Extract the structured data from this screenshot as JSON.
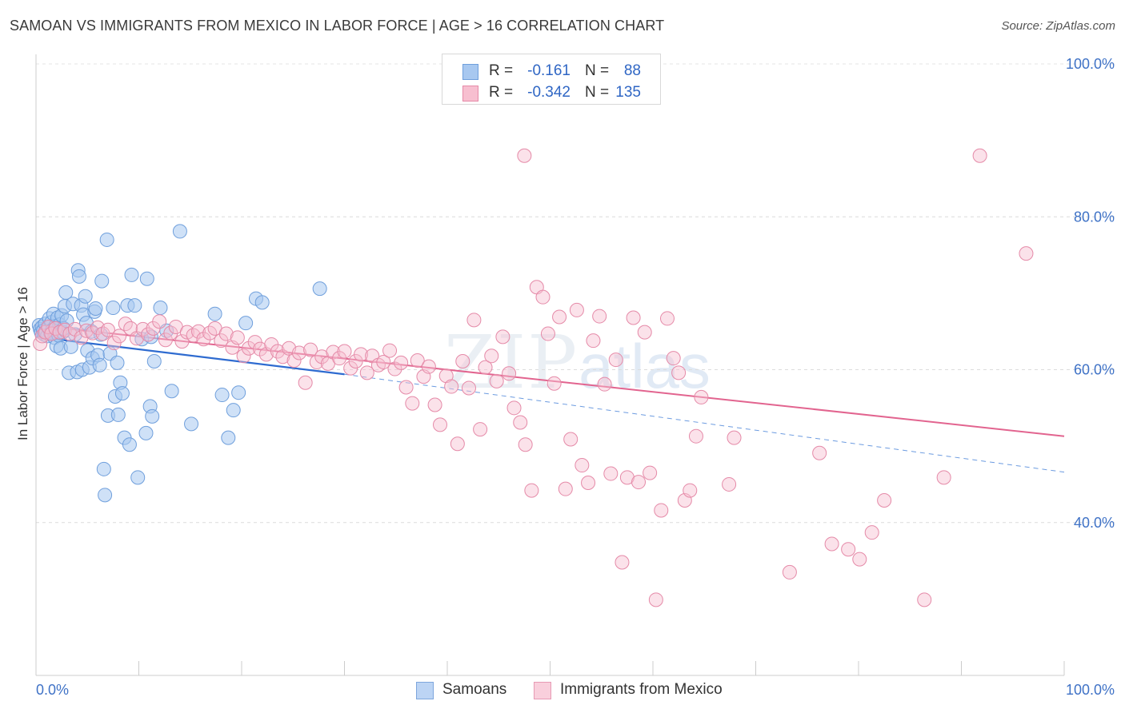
{
  "title": "SAMOAN VS IMMIGRANTS FROM MEXICO IN LABOR FORCE | AGE > 16 CORRELATION CHART",
  "source": "Source: ZipAtlas.com",
  "watermark": {
    "zip": "ZIP",
    "atlas": "atlas"
  },
  "legend": {
    "rows": [
      {
        "r_label": "R =",
        "r_value": "-0.161",
        "n_label": "N =",
        "n_value": "88",
        "color": "#a8c8f0",
        "border": "#6f9fdc"
      },
      {
        "r_label": "R =",
        "r_value": "-0.342",
        "n_label": "N =",
        "n_value": "135",
        "color": "#f7bfd0",
        "border": "#e58aa8"
      }
    ]
  },
  "bottom_legend": [
    {
      "label": "Samoans",
      "color": "#bcd4f4",
      "border": "#7ea6dd"
    },
    {
      "label": "Immigrants from Mexico",
      "color": "#f9cfdc",
      "border": "#e79ab4"
    }
  ],
  "chart_data": {
    "type": "scatter",
    "title": "SAMOAN VS IMMIGRANTS FROM MEXICO IN LABOR FORCE | AGE > 16 CORRELATION CHART",
    "xlabel": "",
    "ylabel": "In Labor Force | Age > 16",
    "xlim": [
      0,
      100
    ],
    "ylim": [
      20,
      100
    ],
    "x_tick_labels": [
      "0.0%",
      "100.0%"
    ],
    "y_tick_labels": [
      "40.0%",
      "60.0%",
      "80.0%",
      "100.0%"
    ],
    "y_ticks": [
      40,
      60,
      80,
      100
    ],
    "grid": true,
    "legend_position": "top-center",
    "series": [
      {
        "name": "Samoans",
        "color": "#a8c8f0",
        "stroke": "#6f9fdc",
        "R": -0.161,
        "N": 88,
        "trend": {
          "x": [
            0,
            30
          ],
          "y": [
            64.3,
            59.4
          ]
        },
        "trend_dashed": {
          "x": [
            30,
            100
          ],
          "y": [
            59.4,
            46.6
          ]
        },
        "points": [
          [
            0.3,
            65.8
          ],
          [
            0.4,
            65.3
          ],
          [
            0.5,
            64.9
          ],
          [
            0.6,
            65.6
          ],
          [
            0.7,
            65.1
          ],
          [
            0.8,
            64.6
          ],
          [
            0.9,
            66.0
          ],
          [
            1.0,
            65.0
          ],
          [
            1.1,
            64.4
          ],
          [
            1.2,
            65.5
          ],
          [
            1.3,
            66.7
          ],
          [
            1.4,
            64.8
          ],
          [
            1.5,
            66.2
          ],
          [
            1.6,
            65.2
          ],
          [
            1.7,
            67.3
          ],
          [
            1.8,
            64.2
          ],
          [
            1.9,
            65.7
          ],
          [
            2.0,
            63.1
          ],
          [
            2.1,
            66.8
          ],
          [
            2.2,
            64.5
          ],
          [
            2.3,
            65.9
          ],
          [
            2.4,
            62.8
          ],
          [
            2.5,
            67.1
          ],
          [
            2.6,
            64.9
          ],
          [
            2.7,
            65.4
          ],
          [
            2.8,
            68.3
          ],
          [
            2.9,
            70.1
          ],
          [
            3.0,
            66.4
          ],
          [
            3.2,
            59.6
          ],
          [
            3.4,
            63.0
          ],
          [
            3.6,
            68.6
          ],
          [
            3.8,
            64.6
          ],
          [
            4.0,
            59.7
          ],
          [
            4.1,
            73.0
          ],
          [
            4.2,
            72.2
          ],
          [
            4.4,
            68.4
          ],
          [
            4.5,
            60.0
          ],
          [
            4.6,
            67.2
          ],
          [
            4.8,
            69.6
          ],
          [
            4.9,
            66.1
          ],
          [
            5.0,
            62.5
          ],
          [
            5.2,
            60.3
          ],
          [
            5.4,
            65.0
          ],
          [
            5.5,
            61.5
          ],
          [
            5.7,
            67.6
          ],
          [
            5.8,
            68.0
          ],
          [
            6.0,
            61.9
          ],
          [
            6.2,
            60.6
          ],
          [
            6.3,
            64.6
          ],
          [
            6.4,
            71.6
          ],
          [
            6.6,
            47.0
          ],
          [
            6.7,
            43.6
          ],
          [
            6.9,
            77.0
          ],
          [
            7.0,
            54.0
          ],
          [
            7.2,
            62.1
          ],
          [
            7.5,
            68.1
          ],
          [
            7.7,
            56.5
          ],
          [
            7.9,
            60.9
          ],
          [
            8.0,
            54.1
          ],
          [
            8.2,
            58.3
          ],
          [
            8.4,
            56.9
          ],
          [
            8.6,
            51.1
          ],
          [
            8.9,
            68.4
          ],
          [
            9.1,
            50.2
          ],
          [
            9.3,
            72.4
          ],
          [
            9.6,
            68.4
          ],
          [
            9.9,
            45.9
          ],
          [
            10.3,
            64.0
          ],
          [
            10.7,
            51.7
          ],
          [
            10.8,
            71.9
          ],
          [
            11.1,
            55.2
          ],
          [
            11.2,
            64.3
          ],
          [
            11.3,
            53.9
          ],
          [
            11.5,
            61.1
          ],
          [
            12.1,
            68.1
          ],
          [
            12.7,
            65.1
          ],
          [
            13.2,
            57.2
          ],
          [
            14.0,
            78.1
          ],
          [
            15.1,
            52.9
          ],
          [
            17.4,
            67.3
          ],
          [
            18.1,
            56.7
          ],
          [
            18.7,
            51.1
          ],
          [
            19.2,
            54.7
          ],
          [
            19.7,
            57.0
          ],
          [
            20.4,
            66.1
          ],
          [
            21.4,
            69.3
          ],
          [
            22.0,
            68.8
          ],
          [
            27.6,
            70.6
          ]
        ]
      },
      {
        "name": "Immigrants from Mexico",
        "color": "#f7bfd0",
        "stroke": "#e58aa8",
        "R": -0.342,
        "N": 135,
        "trend": {
          "x": [
            0,
            100
          ],
          "y": [
            65.8,
            51.3
          ]
        },
        "points": [
          [
            0.4,
            63.4
          ],
          [
            0.6,
            64.4
          ],
          [
            0.9,
            64.9
          ],
          [
            1.2,
            65.6
          ],
          [
            1.5,
            64.7
          ],
          [
            1.9,
            65.4
          ],
          [
            2.3,
            64.9
          ],
          [
            2.8,
            65.2
          ],
          [
            3.3,
            64.7
          ],
          [
            3.8,
            65.3
          ],
          [
            4.4,
            64.2
          ],
          [
            4.9,
            65.1
          ],
          [
            5.5,
            64.8
          ],
          [
            6.0,
            65.5
          ],
          [
            6.5,
            64.7
          ],
          [
            7.0,
            65.2
          ],
          [
            7.6,
            63.5
          ],
          [
            8.1,
            64.4
          ],
          [
            8.7,
            66.0
          ],
          [
            9.2,
            65.4
          ],
          [
            9.8,
            64.1
          ],
          [
            10.4,
            65.3
          ],
          [
            10.9,
            64.6
          ],
          [
            11.4,
            65.4
          ],
          [
            12.0,
            66.3
          ],
          [
            12.6,
            63.9
          ],
          [
            13.1,
            64.8
          ],
          [
            13.6,
            65.6
          ],
          [
            14.2,
            63.7
          ],
          [
            14.7,
            64.9
          ],
          [
            15.3,
            64.5
          ],
          [
            15.8,
            65.0
          ],
          [
            16.3,
            64.0
          ],
          [
            16.9,
            64.8
          ],
          [
            17.4,
            65.4
          ],
          [
            18.0,
            63.8
          ],
          [
            18.5,
            64.7
          ],
          [
            19.1,
            62.9
          ],
          [
            19.6,
            64.2
          ],
          [
            20.2,
            61.8
          ],
          [
            20.7,
            62.8
          ],
          [
            21.3,
            63.6
          ],
          [
            21.8,
            62.7
          ],
          [
            22.4,
            62.0
          ],
          [
            22.9,
            63.3
          ],
          [
            23.5,
            62.4
          ],
          [
            24.0,
            61.7
          ],
          [
            24.6,
            62.8
          ],
          [
            25.1,
            61.2
          ],
          [
            25.6,
            62.2
          ],
          [
            26.2,
            58.3
          ],
          [
            26.7,
            62.6
          ],
          [
            27.3,
            61.0
          ],
          [
            27.8,
            61.7
          ],
          [
            28.4,
            60.8
          ],
          [
            28.9,
            62.3
          ],
          [
            29.5,
            61.5
          ],
          [
            30.0,
            62.4
          ],
          [
            30.6,
            60.2
          ],
          [
            31.1,
            61.1
          ],
          [
            31.6,
            62.0
          ],
          [
            32.2,
            59.6
          ],
          [
            32.7,
            61.8
          ],
          [
            33.3,
            60.6
          ],
          [
            33.8,
            61.0
          ],
          [
            34.4,
            62.5
          ],
          [
            34.9,
            60.1
          ],
          [
            35.5,
            60.9
          ],
          [
            36.0,
            57.7
          ],
          [
            36.6,
            55.6
          ],
          [
            37.1,
            61.2
          ],
          [
            37.7,
            59.1
          ],
          [
            38.2,
            60.4
          ],
          [
            38.8,
            55.4
          ],
          [
            39.3,
            52.8
          ],
          [
            39.9,
            59.2
          ],
          [
            40.4,
            57.8
          ],
          [
            41.0,
            50.3
          ],
          [
            41.5,
            61.1
          ],
          [
            42.1,
            57.6
          ],
          [
            42.6,
            66.5
          ],
          [
            43.2,
            52.2
          ],
          [
            43.7,
            60.3
          ],
          [
            44.3,
            61.8
          ],
          [
            44.8,
            58.5
          ],
          [
            45.4,
            64.3
          ],
          [
            46.0,
            59.5
          ],
          [
            46.5,
            55.0
          ],
          [
            47.1,
            53.1
          ],
          [
            47.6,
            50.2
          ],
          [
            48.2,
            44.2
          ],
          [
            48.7,
            70.8
          ],
          [
            49.3,
            69.5
          ],
          [
            49.8,
            64.7
          ],
          [
            50.4,
            58.2
          ],
          [
            50.9,
            66.9
          ],
          [
            51.5,
            44.4
          ],
          [
            52.0,
            50.9
          ],
          [
            52.6,
            67.8
          ],
          [
            53.1,
            47.5
          ],
          [
            53.7,
            45.2
          ],
          [
            54.2,
            63.8
          ],
          [
            54.8,
            67.0
          ],
          [
            55.3,
            58.1
          ],
          [
            55.9,
            46.4
          ],
          [
            56.4,
            61.3
          ],
          [
            57.0,
            34.8
          ],
          [
            57.5,
            45.9
          ],
          [
            58.1,
            66.8
          ],
          [
            58.6,
            45.3
          ],
          [
            59.2,
            64.9
          ],
          [
            59.7,
            46.5
          ],
          [
            60.3,
            29.9
          ],
          [
            60.8,
            41.6
          ],
          [
            61.4,
            66.7
          ],
          [
            62.0,
            61.5
          ],
          [
            62.5,
            59.6
          ],
          [
            63.1,
            42.9
          ],
          [
            63.6,
            44.2
          ],
          [
            64.2,
            51.3
          ],
          [
            64.7,
            56.4
          ],
          [
            67.4,
            45.0
          ],
          [
            67.9,
            51.1
          ],
          [
            73.3,
            33.5
          ],
          [
            76.2,
            49.1
          ],
          [
            77.4,
            37.2
          ],
          [
            79.0,
            36.5
          ],
          [
            80.1,
            35.2
          ],
          [
            81.3,
            38.7
          ],
          [
            82.5,
            42.9
          ],
          [
            86.4,
            29.9
          ],
          [
            88.3,
            45.9
          ],
          [
            91.8,
            88.0
          ],
          [
            96.3,
            75.2
          ],
          [
            47.5,
            88.0
          ]
        ]
      }
    ]
  }
}
